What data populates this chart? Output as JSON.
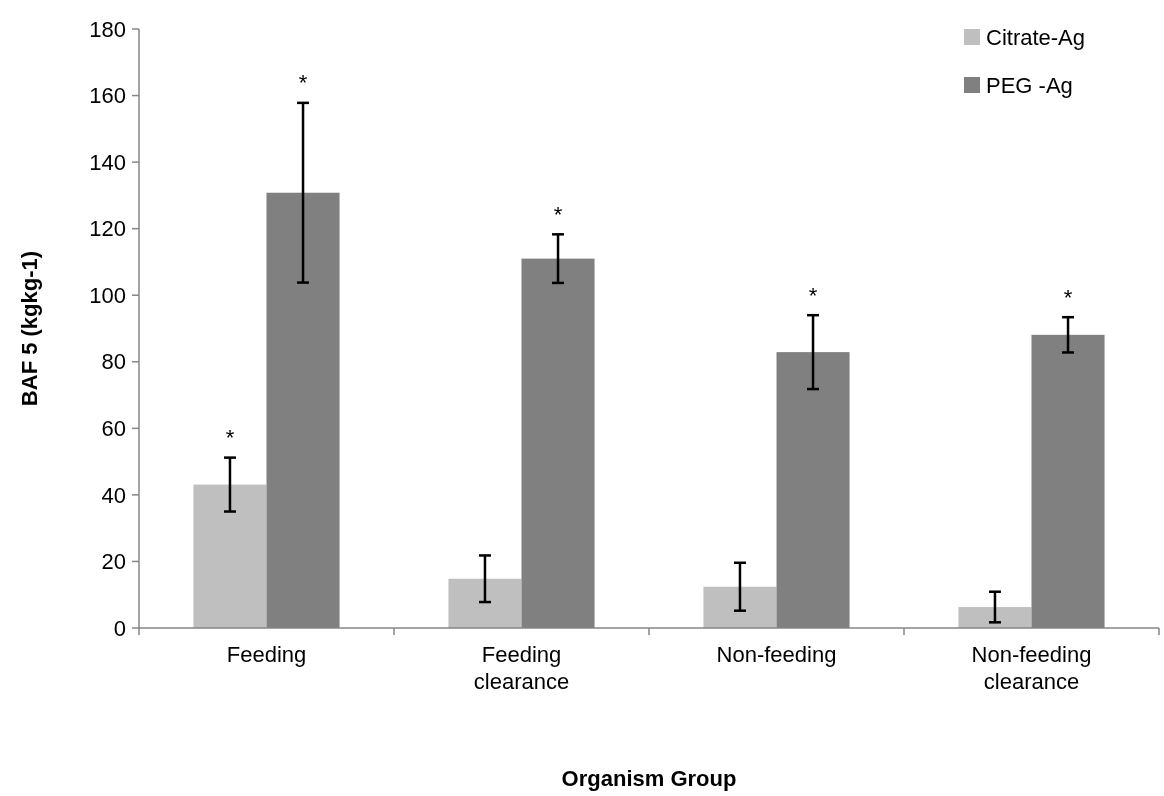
{
  "chart_data": {
    "type": "bar",
    "xlabel": "Organism Group",
    "ylabel": "BAF 5  (kgkg-1)",
    "categories": [
      "Feeding",
      "Feeding clearance",
      "Non-feeding",
      "Non-feeding clearance"
    ],
    "series": [
      {
        "name": "Citrate-Ag",
        "color": "#bfbfbf",
        "values": [
          43.1,
          14.8,
          12.4,
          6.3
        ],
        "errors": [
          8.1,
          7,
          7.2,
          4.6
        ]
      },
      {
        "name": "PEG -Ag",
        "color": "#808080",
        "values": [
          130.8,
          111,
          82.9,
          88.1
        ],
        "errors": [
          27,
          7.3,
          11.1,
          5.3
        ]
      }
    ],
    "ylim": [
      0,
      180
    ],
    "yticks": [
      0,
      20,
      40,
      60,
      80,
      100,
      120,
      140,
      160,
      180
    ],
    "grid": false,
    "legend": "top right",
    "annotations": [
      {
        "text": "*",
        "x": "Feeding",
        "y": 43.1
      },
      "*",
      {
        "text": "*",
        "x": "Feeding clearance",
        "y": 111
      },
      {
        "text": "*",
        "x": "Non-feeding",
        "y": 82.9
      },
      {
        "text": "*",
        "x": "Non-feeding clearance",
        "y": 88.1
      }
    ]
  }
}
